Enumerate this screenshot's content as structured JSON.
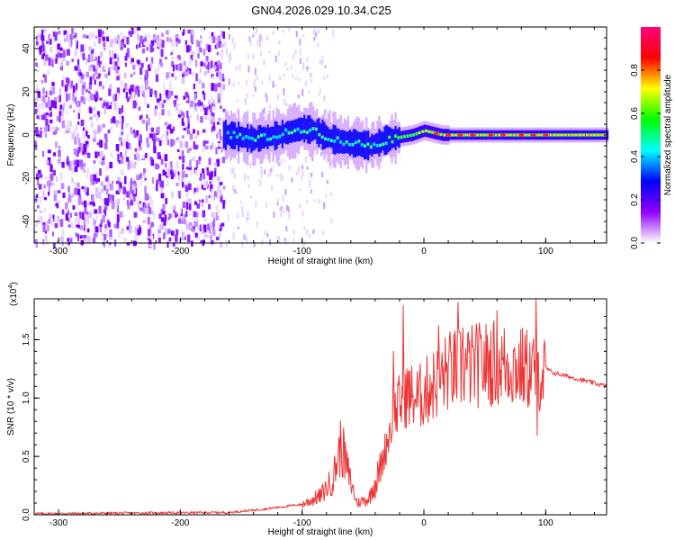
{
  "title": "GN04.2026.029.10.34.C25",
  "chart_data": [
    {
      "type": "heatmap",
      "xlabel": "Height of straight line (km)",
      "ylabel": "Frequency (Hz)",
      "xlim": [
        -320,
        150
      ],
      "ylim": [
        -50,
        50
      ],
      "xticks": [
        -300,
        -200,
        -100,
        0,
        100
      ],
      "yticks": [
        -40,
        -20,
        0,
        20,
        40
      ],
      "xtick_labels": [
        "-300",
        "-200",
        "-100",
        "0",
        "100"
      ],
      "ytick_labels": [
        "-40",
        "-20",
        "0",
        "20",
        "40"
      ],
      "colorbar": {
        "label": "Normalized spectral amplitude",
        "range": [
          0,
          1
        ],
        "ticks": [
          0.0,
          0.2,
          0.4,
          0.6,
          0.8
        ],
        "tick_labels": [
          "0.0",
          "0.2",
          "0.4",
          "0.6",
          "0.8"
        ],
        "colors": [
          "#ffffff",
          "#9000ff",
          "#0000ff",
          "#00ffff",
          "#00ff00",
          "#ffff00",
          "#ff0000",
          "#ff0080"
        ]
      },
      "ridge": [
        {
          "x": -160,
          "f": 0
        },
        {
          "x": -140,
          "f": -2
        },
        {
          "x": -120,
          "f": 0
        },
        {
          "x": -100,
          "f": 3
        },
        {
          "x": -90,
          "f": 2
        },
        {
          "x": -80,
          "f": -1
        },
        {
          "x": -70,
          "f": -3
        },
        {
          "x": -55,
          "f": -4
        },
        {
          "x": -45,
          "f": -5
        },
        {
          "x": -30,
          "f": -2
        },
        {
          "x": -20,
          "f": -1
        },
        {
          "x": -10,
          "f": 0
        },
        {
          "x": 0,
          "f": 2
        },
        {
          "x": 15,
          "f": 0
        },
        {
          "x": 50,
          "f": 0
        },
        {
          "x": 100,
          "f": 0
        },
        {
          "x": 150,
          "f": 0
        }
      ]
    },
    {
      "type": "line",
      "xlabel": "Height of straight line (km)",
      "ylabel": "SNR (10 * v/v)",
      "scale_label": "(x10",
      "scale_exponent": "4",
      "xlim": [
        -320,
        150
      ],
      "ylim": [
        0,
        1.85
      ],
      "xticks": [
        -300,
        -200,
        -100,
        0,
        100
      ],
      "yticks": [
        0.0,
        0.5,
        1.0,
        1.5
      ],
      "xtick_labels": [
        "-300",
        "-200",
        "-100",
        "0",
        "100"
      ],
      "ytick_labels": [
        "0.0",
        "0.5",
        "1.0",
        "1.5"
      ],
      "series": [
        {
          "name": "SNR",
          "color": "#ee3333",
          "envelope": [
            {
              "x": -320,
              "y": 0.01
            },
            {
              "x": -160,
              "y": 0.02
            },
            {
              "x": -130,
              "y": 0.05
            },
            {
              "x": -100,
              "y": 0.09
            },
            {
              "x": -85,
              "y": 0.16
            },
            {
              "x": -75,
              "y": 0.3
            },
            {
              "x": -68,
              "y": 0.6
            },
            {
              "x": -62,
              "y": 0.35
            },
            {
              "x": -55,
              "y": 0.1
            },
            {
              "x": -45,
              "y": 0.14
            },
            {
              "x": -35,
              "y": 0.45
            },
            {
              "x": -25,
              "y": 0.9
            },
            {
              "x": -15,
              "y": 1.1
            },
            {
              "x": -5,
              "y": 1.05
            },
            {
              "x": 5,
              "y": 1.15
            },
            {
              "x": 20,
              "y": 1.3
            },
            {
              "x": 40,
              "y": 1.35
            },
            {
              "x": 60,
              "y": 1.38
            },
            {
              "x": 80,
              "y": 1.33
            },
            {
              "x": 95,
              "y": 1.3
            },
            {
              "x": 105,
              "y": 1.22
            },
            {
              "x": 150,
              "y": 1.1
            }
          ],
          "spikes": [
            {
              "x": -68,
              "y": 0.63
            },
            {
              "x": -25,
              "y": 1.4
            },
            {
              "x": -20,
              "y": 1.08
            },
            {
              "x": -17,
              "y": 1.79
            },
            {
              "x": 5,
              "y": 1.2
            },
            {
              "x": 12,
              "y": 1.62
            },
            {
              "x": 28,
              "y": 1.82
            },
            {
              "x": 32,
              "y": 1.6
            },
            {
              "x": 60,
              "y": 1.75
            },
            {
              "x": 92,
              "y": 1.85
            },
            {
              "x": 93,
              "y": 0.68
            }
          ]
        }
      ]
    }
  ]
}
